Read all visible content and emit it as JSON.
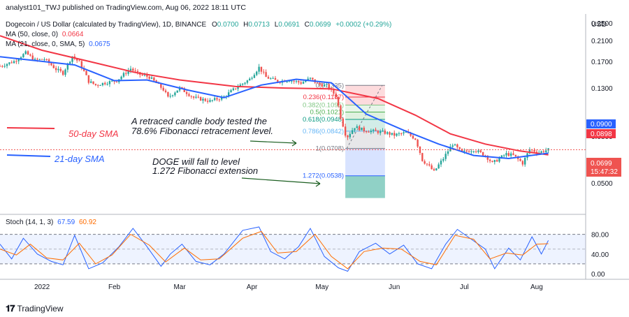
{
  "header": {
    "credit": "analyst101_TWJ published on TradingView.com, Aug 06, 2022 18:11 UTC",
    "currency": "USD"
  },
  "legend": {
    "symbol": "Dogecoin / US Dollar (calculated by TradingView), 1D, BINANCE",
    "ohlc": [
      {
        "k": "O",
        "v": "0.0700"
      },
      {
        "k": "H",
        "v": "0.0713"
      },
      {
        "k": "L",
        "v": "0.0691"
      },
      {
        "k": "C",
        "v": "0.0699"
      }
    ],
    "change": "+0.0002 (+0.29%)",
    "ma50_label": "MA (50, close, 0)",
    "ma50_value": "0.0664",
    "ma21_label": "MA (21, close, 0, SMA, 5)",
    "ma21_value": "0.0675",
    "stoch_label": "Stoch (14, 1, 3)",
    "stoch_k": "67.59",
    "stoch_d": "60.92"
  },
  "annotations": {
    "sma50": "50-day SMA",
    "sma21": "21-day SMA",
    "retrace_line1": "A retraced candle body tested the",
    "retrace_line2": "78.6% Fibonacci retracement level.",
    "fall_line1": "DOGE will fall to level",
    "fall_line2": "1.272 Fibonacci extension"
  },
  "fib_levels": [
    {
      "label": "0(0.1335)",
      "value": 0.1335,
      "color": "#787b86"
    },
    {
      "label": "0.236(0.1187)",
      "value": 0.1187,
      "color": "#f23645"
    },
    {
      "label": "0.382(0.1095)",
      "value": 0.1095,
      "color": "#81c784"
    },
    {
      "label": "0.5(0.1021)",
      "value": 0.1021,
      "color": "#4caf50"
    },
    {
      "label": "0.618(0.0948)",
      "value": 0.0948,
      "color": "#089981"
    },
    {
      "label": "0.786(0.0842)",
      "value": 0.0842,
      "color": "#64b5f6"
    },
    {
      "label": "1(0.0708)",
      "value": 0.0708,
      "color": "#787b86"
    },
    {
      "label": "1.272(0.0538)",
      "value": 0.0538,
      "color": "#2962ff"
    }
  ],
  "price_badges": {
    "ma_upper": "0.0900",
    "ma_lower": "0.0898",
    "last_price": "0.0699",
    "countdown": "15:47:32"
  },
  "colors": {
    "up": "#26a69a",
    "down": "#ef5350",
    "ma50": "#f23645",
    "ma21": "#2962ff",
    "stoch_k": "#2962ff",
    "stoch_d": "#ff6d00",
    "arrow": "#1b5e20"
  },
  "footer": {
    "brand": "TradingView"
  },
  "chart_data": {
    "type": "candlestick",
    "price_axis": {
      "scale": "log",
      "ticks": [
        "0.2500",
        "0.2100",
        "0.1700",
        "0.1300",
        "0.0800",
        "0.0500"
      ],
      "tick_values": [
        0.25,
        0.21,
        0.17,
        0.13,
        0.08,
        0.05
      ],
      "range": [
        0.037,
        0.27
      ]
    },
    "time_axis": {
      "labels": [
        "2022",
        "Feb",
        "Mar",
        "Apr",
        "May",
        "Jun",
        "Jul",
        "Aug"
      ],
      "range": [
        "2021-12-14",
        "2022-08-22"
      ]
    },
    "close_series": [
      {
        "date": "2021-12-14",
        "close": 0.162
      },
      {
        "date": "2021-12-20",
        "close": 0.17
      },
      {
        "date": "2021-12-25",
        "close": 0.185
      },
      {
        "date": "2021-12-29",
        "close": 0.172
      },
      {
        "date": "2022-01-02",
        "close": 0.174
      },
      {
        "date": "2022-01-07",
        "close": 0.157
      },
      {
        "date": "2022-01-10",
        "close": 0.151
      },
      {
        "date": "2022-01-14",
        "close": 0.179
      },
      {
        "date": "2022-01-17",
        "close": 0.168
      },
      {
        "date": "2022-01-21",
        "close": 0.139
      },
      {
        "date": "2022-01-24",
        "close": 0.134
      },
      {
        "date": "2022-01-28",
        "close": 0.137
      },
      {
        "date": "2022-02-02",
        "close": 0.14
      },
      {
        "date": "2022-02-08",
        "close": 0.158
      },
      {
        "date": "2022-02-11",
        "close": 0.15
      },
      {
        "date": "2022-02-16",
        "close": 0.145
      },
      {
        "date": "2022-02-22",
        "close": 0.128
      },
      {
        "date": "2022-02-24",
        "close": 0.118
      },
      {
        "date": "2022-03-01",
        "close": 0.13
      },
      {
        "date": "2022-03-07",
        "close": 0.118
      },
      {
        "date": "2022-03-14",
        "close": 0.114
      },
      {
        "date": "2022-03-20",
        "close": 0.119
      },
      {
        "date": "2022-03-25",
        "close": 0.13
      },
      {
        "date": "2022-03-31",
        "close": 0.142
      },
      {
        "date": "2022-04-04",
        "close": 0.16
      },
      {
        "date": "2022-04-07",
        "close": 0.145
      },
      {
        "date": "2022-04-12",
        "close": 0.139
      },
      {
        "date": "2022-04-17",
        "close": 0.141
      },
      {
        "date": "2022-04-22",
        "close": 0.137
      },
      {
        "date": "2022-04-26",
        "close": 0.143
      },
      {
        "date": "2022-04-29",
        "close": 0.136
      },
      {
        "date": "2022-05-03",
        "close": 0.133
      },
      {
        "date": "2022-05-07",
        "close": 0.12
      },
      {
        "date": "2022-05-09",
        "close": 0.097
      },
      {
        "date": "2022-05-11",
        "close": 0.082
      },
      {
        "date": "2022-05-12",
        "close": 0.08
      },
      {
        "date": "2022-05-15",
        "close": 0.088
      },
      {
        "date": "2022-05-19",
        "close": 0.085
      },
      {
        "date": "2022-05-24",
        "close": 0.084
      },
      {
        "date": "2022-05-28",
        "close": 0.083
      },
      {
        "date": "2022-06-01",
        "close": 0.081
      },
      {
        "date": "2022-06-06",
        "close": 0.083
      },
      {
        "date": "2022-06-10",
        "close": 0.078
      },
      {
        "date": "2022-06-13",
        "close": 0.063
      },
      {
        "date": "2022-06-16",
        "close": 0.059
      },
      {
        "date": "2022-06-18",
        "close": 0.056
      },
      {
        "date": "2022-06-22",
        "close": 0.064
      },
      {
        "date": "2022-06-26",
        "close": 0.074
      },
      {
        "date": "2022-06-30",
        "close": 0.068
      },
      {
        "date": "2022-07-05",
        "close": 0.07
      },
      {
        "date": "2022-07-10",
        "close": 0.066
      },
      {
        "date": "2022-07-13",
        "close": 0.061
      },
      {
        "date": "2022-07-19",
        "close": 0.067
      },
      {
        "date": "2022-07-22",
        "close": 0.066
      },
      {
        "date": "2022-07-26",
        "close": 0.061
      },
      {
        "date": "2022-07-29",
        "close": 0.07
      },
      {
        "date": "2022-08-02",
        "close": 0.068
      },
      {
        "date": "2022-08-06",
        "close": 0.0699
      }
    ],
    "series": [
      {
        "name": "MA (50, close, 0)",
        "values": [
          {
            "date": "2021-12-14",
            "value": 0.22
          },
          {
            "date": "2022-01-01",
            "value": 0.19
          },
          {
            "date": "2022-01-20",
            "value": 0.171
          },
          {
            "date": "2022-02-10",
            "value": 0.152
          },
          {
            "date": "2022-03-01",
            "value": 0.141
          },
          {
            "date": "2022-03-25",
            "value": 0.132
          },
          {
            "date": "2022-04-15",
            "value": 0.13
          },
          {
            "date": "2022-05-05",
            "value": 0.129
          },
          {
            "date": "2022-05-25",
            "value": 0.117
          },
          {
            "date": "2022-06-10",
            "value": 0.099
          },
          {
            "date": "2022-06-25",
            "value": 0.082
          },
          {
            "date": "2022-07-10",
            "value": 0.074
          },
          {
            "date": "2022-07-25",
            "value": 0.069
          },
          {
            "date": "2022-08-06",
            "value": 0.0664
          }
        ]
      },
      {
        "name": "MA (21, close, 0, SMA, 5)",
        "values": [
          {
            "date": "2021-12-14",
            "value": 0.178
          },
          {
            "date": "2022-01-01",
            "value": 0.17
          },
          {
            "date": "2022-01-15",
            "value": 0.164
          },
          {
            "date": "2022-02-01",
            "value": 0.14
          },
          {
            "date": "2022-02-15",
            "value": 0.141
          },
          {
            "date": "2022-03-05",
            "value": 0.127
          },
          {
            "date": "2022-03-20",
            "value": 0.118
          },
          {
            "date": "2022-04-05",
            "value": 0.134
          },
          {
            "date": "2022-04-20",
            "value": 0.142
          },
          {
            "date": "2022-05-05",
            "value": 0.137
          },
          {
            "date": "2022-05-20",
            "value": 0.1
          },
          {
            "date": "2022-06-05",
            "value": 0.085
          },
          {
            "date": "2022-06-20",
            "value": 0.074
          },
          {
            "date": "2022-07-05",
            "value": 0.066
          },
          {
            "date": "2022-07-20",
            "value": 0.064
          },
          {
            "date": "2022-08-06",
            "value": 0.0675
          }
        ]
      }
    ],
    "stochastic": {
      "axis_ticks": [
        "80.00",
        "40.00",
        "0.00"
      ],
      "tick_values": [
        80,
        40,
        0
      ],
      "band": [
        20,
        80
      ],
      "midline": 50,
      "k": [
        {
          "date": "2021-12-14",
          "value": 60
        },
        {
          "date": "2021-12-19",
          "value": 30
        },
        {
          "date": "2021-12-24",
          "value": 72
        },
        {
          "date": "2021-12-30",
          "value": 40
        },
        {
          "date": "2022-01-05",
          "value": 25
        },
        {
          "date": "2022-01-10",
          "value": 18
        },
        {
          "date": "2022-01-15",
          "value": 78
        },
        {
          "date": "2022-01-21",
          "value": 10
        },
        {
          "date": "2022-01-27",
          "value": 22
        },
        {
          "date": "2022-02-03",
          "value": 55
        },
        {
          "date": "2022-02-09",
          "value": 92
        },
        {
          "date": "2022-02-15",
          "value": 55
        },
        {
          "date": "2022-02-21",
          "value": 15
        },
        {
          "date": "2022-02-25",
          "value": 40
        },
        {
          "date": "2022-03-02",
          "value": 60
        },
        {
          "date": "2022-03-08",
          "value": 25
        },
        {
          "date": "2022-03-14",
          "value": 18
        },
        {
          "date": "2022-03-20",
          "value": 40
        },
        {
          "date": "2022-03-28",
          "value": 88
        },
        {
          "date": "2022-04-04",
          "value": 95
        },
        {
          "date": "2022-04-09",
          "value": 45
        },
        {
          "date": "2022-04-15",
          "value": 30
        },
        {
          "date": "2022-04-21",
          "value": 55
        },
        {
          "date": "2022-04-26",
          "value": 92
        },
        {
          "date": "2022-05-02",
          "value": 35
        },
        {
          "date": "2022-05-08",
          "value": 12
        },
        {
          "date": "2022-05-12",
          "value": 5
        },
        {
          "date": "2022-05-17",
          "value": 45
        },
        {
          "date": "2022-05-24",
          "value": 62
        },
        {
          "date": "2022-05-30",
          "value": 40
        },
        {
          "date": "2022-06-05",
          "value": 58
        },
        {
          "date": "2022-06-11",
          "value": 20
        },
        {
          "date": "2022-06-17",
          "value": 10
        },
        {
          "date": "2022-06-23",
          "value": 60
        },
        {
          "date": "2022-06-28",
          "value": 90
        },
        {
          "date": "2022-07-04",
          "value": 70
        },
        {
          "date": "2022-07-10",
          "value": 50
        },
        {
          "date": "2022-07-14",
          "value": 10
        },
        {
          "date": "2022-07-20",
          "value": 52
        },
        {
          "date": "2022-07-25",
          "value": 28
        },
        {
          "date": "2022-07-30",
          "value": 75
        },
        {
          "date": "2022-08-03",
          "value": 40
        },
        {
          "date": "2022-08-06",
          "value": 67.59
        }
      ],
      "d": [
        {
          "date": "2021-12-14",
          "value": 50
        },
        {
          "date": "2021-12-21",
          "value": 38
        },
        {
          "date": "2021-12-27",
          "value": 60
        },
        {
          "date": "2022-01-03",
          "value": 32
        },
        {
          "date": "2022-01-10",
          "value": 28
        },
        {
          "date": "2022-01-17",
          "value": 62
        },
        {
          "date": "2022-01-24",
          "value": 20
        },
        {
          "date": "2022-01-31",
          "value": 38
        },
        {
          "date": "2022-02-08",
          "value": 80
        },
        {
          "date": "2022-02-16",
          "value": 58
        },
        {
          "date": "2022-02-23",
          "value": 24
        },
        {
          "date": "2022-03-03",
          "value": 52
        },
        {
          "date": "2022-03-10",
          "value": 28
        },
        {
          "date": "2022-03-18",
          "value": 30
        },
        {
          "date": "2022-03-28",
          "value": 72
        },
        {
          "date": "2022-04-05",
          "value": 86
        },
        {
          "date": "2022-04-12",
          "value": 42
        },
        {
          "date": "2022-04-20",
          "value": 45
        },
        {
          "date": "2022-04-28",
          "value": 80
        },
        {
          "date": "2022-05-05",
          "value": 35
        },
        {
          "date": "2022-05-12",
          "value": 10
        },
        {
          "date": "2022-05-19",
          "value": 45
        },
        {
          "date": "2022-05-27",
          "value": 52
        },
        {
          "date": "2022-06-04",
          "value": 50
        },
        {
          "date": "2022-06-12",
          "value": 25
        },
        {
          "date": "2022-06-19",
          "value": 18
        },
        {
          "date": "2022-06-27",
          "value": 78
        },
        {
          "date": "2022-07-05",
          "value": 70
        },
        {
          "date": "2022-07-12",
          "value": 30
        },
        {
          "date": "2022-07-19",
          "value": 42
        },
        {
          "date": "2022-07-26",
          "value": 38
        },
        {
          "date": "2022-08-01",
          "value": 60
        },
        {
          "date": "2022-08-06",
          "value": 60.92
        }
      ]
    }
  }
}
